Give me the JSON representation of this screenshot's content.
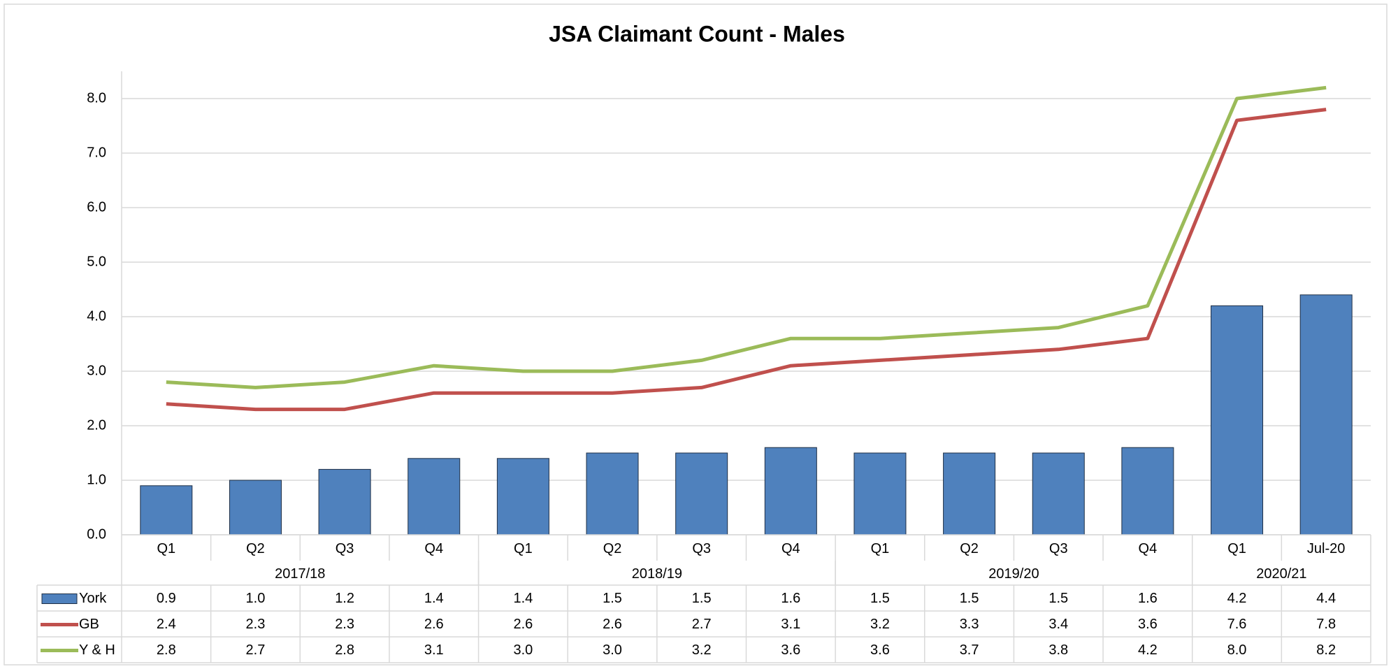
{
  "chart_data": {
    "type": "bar-line",
    "title": "JSA Claimant Count - Males",
    "categories": [
      "Q1",
      "Q2",
      "Q3",
      "Q4",
      "Q1",
      "Q2",
      "Q3",
      "Q4",
      "Q1",
      "Q2",
      "Q3",
      "Q4",
      "Q1",
      "Jul-20"
    ],
    "groups": [
      {
        "label": "2017/18",
        "count": 4
      },
      {
        "label": "2018/19",
        "count": 4
      },
      {
        "label": "2019/20",
        "count": 4
      },
      {
        "label": "2020/21",
        "count": 2
      }
    ],
    "series": [
      {
        "name": "York",
        "type": "bar",
        "color": "#4f81bd",
        "values": [
          0.9,
          1.0,
          1.2,
          1.4,
          1.4,
          1.5,
          1.5,
          1.6,
          1.5,
          1.5,
          1.5,
          1.6,
          4.2,
          4.4
        ],
        "value_labels": [
          "0.9",
          "1.0",
          "1.2",
          "1.4",
          "1.4",
          "1.5",
          "1.5",
          "1.6",
          "1.5",
          "1.5",
          "1.5",
          "1.6",
          "4.2",
          "4.4"
        ]
      },
      {
        "name": "GB",
        "type": "line",
        "color": "#c0504d",
        "values": [
          2.4,
          2.3,
          2.3,
          2.6,
          2.6,
          2.6,
          2.7,
          3.1,
          3.2,
          3.3,
          3.4,
          3.6,
          7.6,
          7.8
        ],
        "value_labels": [
          "2.4",
          "2.3",
          "2.3",
          "2.6",
          "2.6",
          "2.6",
          "2.7",
          "3.1",
          "3.2",
          "3.3",
          "3.4",
          "3.6",
          "7.6",
          "7.8"
        ]
      },
      {
        "name": "Y & H",
        "type": "line",
        "color": "#9bbb59",
        "values": [
          2.8,
          2.7,
          2.8,
          3.1,
          3.0,
          3.0,
          3.2,
          3.6,
          3.6,
          3.7,
          3.8,
          4.2,
          8.0,
          8.2
        ],
        "value_labels": [
          "2.8",
          "2.7",
          "2.8",
          "3.1",
          "3.0",
          "3.0",
          "3.2",
          "3.6",
          "3.6",
          "3.7",
          "3.8",
          "4.2",
          "8.0",
          "8.2"
        ]
      }
    ],
    "ylim": [
      0,
      8.5
    ],
    "yticks": [
      {
        "value": 0,
        "label": "0.0"
      },
      {
        "value": 1,
        "label": "1.0"
      },
      {
        "value": 2,
        "label": "2.0"
      },
      {
        "value": 3,
        "label": "3.0"
      },
      {
        "value": 4,
        "label": "4.0"
      },
      {
        "value": 5,
        "label": "5.0"
      },
      {
        "value": 6,
        "label": "6.0"
      },
      {
        "value": 7,
        "label": "7.0"
      },
      {
        "value": 8,
        "label": "8.0"
      }
    ],
    "grid": true
  }
}
